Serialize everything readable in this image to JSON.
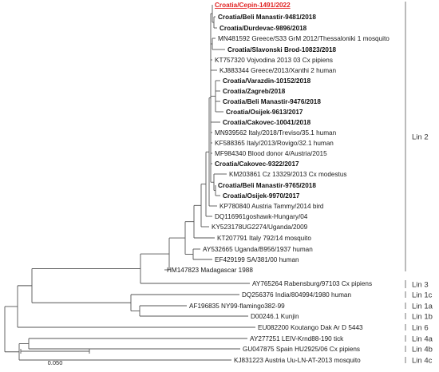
{
  "colors": {
    "branch": "#555555",
    "text": "#1a1a1a",
    "highlight": "#e02020",
    "bracket": "#777777"
  },
  "taxa": [
    {
      "label": "Croatia/Cepin-1491/2022",
      "style": "highlight"
    },
    {
      "label": "Croatia/Beli Manastir-9481/2018",
      "style": "bold"
    },
    {
      "label": "Croatia/Durdevac-9896/2018",
      "style": "bold"
    },
    {
      "label": "MN481592 Greece/S33 GrM 2012/Thessaloniki 1 mosquito",
      "style": "normal"
    },
    {
      "label": "Croatia/Slavonski Brod-10823/2018",
      "style": "bold"
    },
    {
      "label": "KT757320 Vojvodina 2013 03 Cx pipiens",
      "style": "normal"
    },
    {
      "label": "KJ883344 Greece/2013/Xanthi 2 human",
      "style": "normal"
    },
    {
      "label": "Croatia/Varazdin-10152/2018",
      "style": "bold"
    },
    {
      "label": "Croatia/Zagreb/2018",
      "style": "bold"
    },
    {
      "label": "Croatia/Beli Manastir-9476/2018",
      "style": "bold"
    },
    {
      "label": "Croatia/Osijek-9613/2017",
      "style": "bold"
    },
    {
      "label": "Croatia/Cakovec-10041/2018",
      "style": "bold"
    },
    {
      "label": "MN939562 Italy/2018/Treviso/35.1 human",
      "style": "normal"
    },
    {
      "label": "KF588365 Italy/2013/Rovigo/32.1 human",
      "style": "normal"
    },
    {
      "label": "MF984340 Blood donor 4/Austria/2015",
      "style": "normal"
    },
    {
      "label": "Croatia/Cakovec-9322/2017",
      "style": "bold"
    },
    {
      "label": "KM203861 Cz 13329/2013 Cx modestus",
      "style": "normal"
    },
    {
      "label": "Croatia/Beli Manastir-9765/2018",
      "style": "bold"
    },
    {
      "label": "Croatia/Osijek-9970/2017",
      "style": "bold"
    },
    {
      "label": "KP780840 Austria Tammy/2014 bird",
      "style": "normal"
    },
    {
      "label": "DQ116961goshawk-Hungary/04",
      "style": "normal"
    },
    {
      "label": "KY523178UG2274/Uganda/2009",
      "style": "normal"
    },
    {
      "label": "KT207791 Italy 792/14 mosquito",
      "style": "normal"
    },
    {
      "label": "AY532665 Uganda/B956/1937 human",
      "style": "normal"
    },
    {
      "label": "EF429199 SA/381/00 human",
      "style": "normal"
    },
    {
      "label": "HM147823  Madagascar 1988",
      "style": "normal"
    },
    {
      "label": "AY765264 Rabensburg/97103 Cx pipiens",
      "style": "normal"
    },
    {
      "label": "DQ256376 India/804994/1980 human",
      "style": "normal"
    },
    {
      "label": "AF196835 NY99-flamingo382-99",
      "style": "normal"
    },
    {
      "label": "D00246.1 Kunjin",
      "style": "normal"
    },
    {
      "label": "EU082200 Koutango Dak Ar D 5443",
      "style": "normal"
    },
    {
      "label": "AY277251 LEIV-Krnd88-190 tick",
      "style": "normal"
    },
    {
      "label": "GU047875 Spain HU2925/06 Cx pipiens",
      "style": "normal"
    },
    {
      "label": "KJ831223 Austria Uu-LN-AT-2013 mosquito",
      "style": "normal"
    }
  ],
  "lineages": [
    {
      "label": "Lin 2"
    },
    {
      "label": "Lin 3"
    },
    {
      "label": "Lin 1c"
    },
    {
      "label": "Lin 1a"
    },
    {
      "label": "Lin 1b"
    },
    {
      "label": "Lin 6"
    },
    {
      "label": "Lin 4a"
    },
    {
      "label": "Lin 4b"
    },
    {
      "label": "Lin 4c"
    }
  ],
  "scale_bar": {
    "label": "0.050"
  }
}
